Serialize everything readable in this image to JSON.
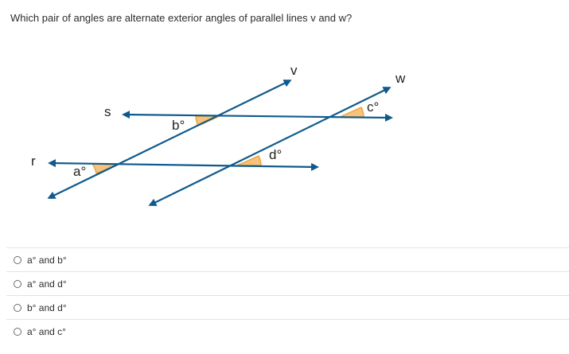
{
  "question": {
    "text": "Which pair of angles are alternate exterior angles of parallel lines v and w?"
  },
  "figure": {
    "line_labels": {
      "s": "s",
      "r": "r",
      "v": "v",
      "w": "w"
    },
    "angle_labels": {
      "a": "a°",
      "b": "b°",
      "c": "c°",
      "d": "d°"
    },
    "colors": {
      "line": "#0f5a8c",
      "angle_fill": "#f6c27d",
      "angle_stroke": "#f0a43a"
    }
  },
  "options": [
    {
      "label": "a° and b°"
    },
    {
      "label": "a° and d°"
    },
    {
      "label": "b° and d°"
    },
    {
      "label": "a° and c°"
    }
  ]
}
